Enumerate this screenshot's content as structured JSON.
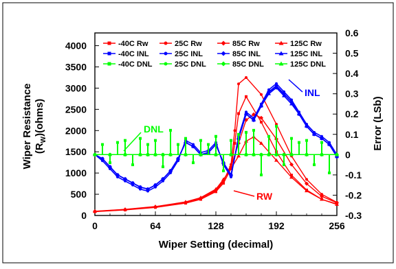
{
  "chart_data": {
    "type": "line",
    "title": "",
    "xlabel": "Wiper Setting (decimal)",
    "ylabel_left": "Wiper Resistance (R_W)(ohms)",
    "ylabel_right": "Error (LSb)",
    "xlim": [
      0,
      256
    ],
    "ylim_left": [
      0,
      4300
    ],
    "ylim_right": [
      -0.3,
      0.6
    ],
    "x_ticks": [
      "0",
      "64",
      "128",
      "192",
      "256"
    ],
    "y_left_ticks": [
      "0",
      "500",
      "1000",
      "1500",
      "2000",
      "2500",
      "3000",
      "3500",
      "4000"
    ],
    "y_right_ticks": [
      "-0.3",
      "-0.2",
      "-0.1",
      "0",
      "0.1",
      "0.2",
      "0.3",
      "0.4",
      "0.5",
      "0.6"
    ],
    "grid": false,
    "legend_position": "top",
    "legend": [
      [
        "-40C Rw",
        "25C Rw",
        "85C Rw",
        "125C Rw"
      ],
      [
        "-40C INL",
        "25C INL",
        "85C INL",
        "125C INL"
      ],
      [
        "-40C DNL",
        "25C DNL",
        "85C DNL",
        "125C DNL"
      ]
    ],
    "annotations": {
      "inl": "INL",
      "dnl": "DNL",
      "rw": "RW"
    },
    "colors": {
      "rw": "#ff0000",
      "inl": "#0000ff",
      "dnl": "#00ff00"
    },
    "series": [
      {
        "name": "-40C Rw",
        "group": "rw",
        "axis": "left",
        "x": [
          0,
          32,
          64,
          96,
          112,
          128,
          136,
          144,
          148,
          152,
          160,
          176,
          192,
          208,
          224,
          240,
          256
        ],
        "values": [
          90,
          130,
          190,
          290,
          380,
          560,
          760,
          1100,
          1700,
          2400,
          2800,
          2200,
          1500,
          950,
          600,
          380,
          270
        ]
      },
      {
        "name": "25C Rw",
        "group": "rw",
        "axis": "left",
        "x": [
          0,
          32,
          64,
          96,
          112,
          128,
          136,
          144,
          148,
          152,
          160,
          176,
          192,
          208,
          224,
          240,
          256
        ],
        "values": [
          95,
          135,
          200,
          300,
          400,
          580,
          800,
          1200,
          2000,
          3100,
          3250,
          2850,
          2150,
          1400,
          850,
          500,
          310
        ]
      },
      {
        "name": "85C Rw",
        "group": "rw",
        "axis": "left",
        "x": [
          0,
          32,
          64,
          96,
          112,
          128,
          136,
          144,
          152,
          160,
          168,
          176,
          192,
          208,
          224,
          240,
          256
        ],
        "values": [
          95,
          140,
          205,
          310,
          410,
          600,
          820,
          1150,
          1700,
          2250,
          2380,
          2300,
          1800,
          1200,
          750,
          450,
          300
        ]
      },
      {
        "name": "125C Rw",
        "group": "rw",
        "axis": "left",
        "x": [
          0,
          32,
          64,
          96,
          112,
          128,
          136,
          144,
          152,
          160,
          168,
          176,
          192,
          208,
          224,
          240,
          256
        ],
        "values": [
          100,
          145,
          210,
          320,
          420,
          620,
          850,
          1100,
          1400,
          1750,
          1850,
          1700,
          1300,
          900,
          580,
          380,
          260
        ]
      },
      {
        "name": "-40C INL",
        "group": "inl",
        "axis": "right",
        "x": [
          0,
          8,
          16,
          24,
          32,
          40,
          48,
          56,
          64,
          72,
          80,
          88,
          96,
          104,
          112,
          120,
          128,
          136,
          144,
          152,
          160,
          168,
          176,
          184,
          192,
          200,
          208,
          216,
          224,
          232,
          240,
          248,
          256
        ],
        "values": [
          0,
          -0.02,
          -0.06,
          -0.1,
          -0.12,
          -0.14,
          -0.16,
          -0.17,
          -0.15,
          -0.12,
          -0.08,
          -0.02,
          0.06,
          0.04,
          0,
          0.01,
          0.05,
          -0.04,
          -0.1,
          0.08,
          0.2,
          0.17,
          0.24,
          0.31,
          0.34,
          0.3,
          0.26,
          0.2,
          0.14,
          0.1,
          0.08,
          0.05,
          -0.01
        ]
      },
      {
        "name": "25C INL",
        "group": "inl",
        "axis": "right",
        "x": [
          0,
          8,
          16,
          24,
          32,
          40,
          48,
          56,
          64,
          72,
          80,
          88,
          96,
          104,
          112,
          120,
          128,
          136,
          144,
          152,
          160,
          168,
          176,
          184,
          192,
          200,
          208,
          216,
          224,
          232,
          240,
          248,
          256
        ],
        "values": [
          0,
          -0.03,
          -0.07,
          -0.11,
          -0.13,
          -0.15,
          -0.17,
          -0.18,
          -0.16,
          -0.13,
          -0.09,
          -0.03,
          0.07,
          0.05,
          0.01,
          0.02,
          0.06,
          -0.05,
          -0.11,
          0.09,
          0.21,
          0.18,
          0.25,
          0.32,
          0.35,
          0.31,
          0.27,
          0.21,
          0.15,
          0.11,
          0.09,
          0.06,
          0
        ]
      },
      {
        "name": "85C INL",
        "group": "inl",
        "axis": "right",
        "x": [
          0,
          8,
          16,
          24,
          32,
          40,
          48,
          56,
          64,
          72,
          80,
          88,
          96,
          104,
          112,
          120,
          128,
          136,
          144,
          152,
          160,
          168,
          176,
          184,
          192,
          200,
          208,
          216,
          224,
          232,
          240,
          248,
          256
        ],
        "values": [
          0,
          -0.02,
          -0.06,
          -0.1,
          -0.12,
          -0.14,
          -0.16,
          -0.17,
          -0.15,
          -0.12,
          -0.08,
          -0.02,
          0.06,
          0.04,
          0,
          0.01,
          0.05,
          -0.04,
          -0.1,
          0.08,
          0.2,
          0.17,
          0.24,
          0.31,
          0.33,
          0.3,
          0.26,
          0.2,
          0.14,
          0.1,
          0.08,
          0.05,
          -0.01
        ]
      },
      {
        "name": "125C INL",
        "group": "inl",
        "axis": "right",
        "x": [
          0,
          8,
          16,
          24,
          32,
          40,
          48,
          56,
          64,
          72,
          80,
          88,
          96,
          104,
          112,
          120,
          128,
          136,
          144,
          152,
          160,
          168,
          176,
          184,
          192,
          200,
          208,
          216,
          224,
          232,
          240,
          248,
          256
        ],
        "values": [
          0,
          -0.02,
          -0.06,
          -0.1,
          -0.12,
          -0.14,
          -0.16,
          -0.17,
          -0.15,
          -0.12,
          -0.08,
          -0.02,
          0.06,
          0.04,
          0,
          0.01,
          0.05,
          -0.04,
          -0.1,
          0.08,
          0.2,
          0.17,
          0.24,
          0.3,
          0.33,
          0.29,
          0.25,
          0.2,
          0.14,
          0.1,
          0.08,
          0.05,
          -0.01
        ]
      },
      {
        "name": "-40C DNL",
        "group": "dnl",
        "axis": "right",
        "x": [
          0,
          16,
          32,
          48,
          56,
          64,
          72,
          80,
          96,
          112,
          128,
          144,
          160,
          168,
          176,
          184,
          192,
          200,
          208,
          224,
          240,
          256
        ],
        "values": [
          0,
          0,
          0,
          0,
          0,
          0,
          0,
          0,
          0,
          0,
          0,
          0,
          0,
          0,
          0,
          0,
          0,
          0,
          0,
          0,
          0,
          0
        ]
      },
      {
        "name": "25C DNL",
        "group": "dnl",
        "axis": "right",
        "x": [
          0,
          16,
          32,
          48,
          56,
          64,
          72,
          80,
          96,
          112,
          128,
          144,
          160,
          168,
          176,
          184,
          192,
          200,
          208,
          224,
          240,
          256
        ],
        "values": [
          0,
          0,
          0,
          0,
          0,
          0,
          0,
          0,
          0,
          0,
          0,
          0,
          0,
          0,
          0,
          0,
          0,
          0,
          0,
          0,
          0,
          0
        ]
      },
      {
        "name": "85C DNL",
        "group": "dnl",
        "axis": "right",
        "x": [
          0,
          16,
          32,
          48,
          56,
          64,
          72,
          80,
          96,
          112,
          128,
          144,
          160,
          168,
          176,
          184,
          192,
          200,
          208,
          224,
          240,
          256
        ],
        "values": [
          0,
          0,
          0,
          0,
          0,
          0,
          0,
          0,
          0,
          0,
          0,
          0,
          0,
          0,
          0,
          0,
          0,
          0,
          0,
          0,
          0,
          0
        ]
      },
      {
        "name": "125C DNL",
        "group": "dnl",
        "axis": "right",
        "x": [
          0,
          16,
          32,
          48,
          56,
          64,
          72,
          80,
          96,
          112,
          128,
          144,
          160,
          168,
          176,
          184,
          192,
          200,
          208,
          224,
          240,
          256
        ],
        "values": [
          0,
          0,
          0,
          0,
          0,
          0,
          0,
          0,
          0,
          0,
          0,
          0,
          0,
          0,
          0,
          0,
          0,
          0,
          0,
          0,
          0,
          0
        ]
      }
    ],
    "dnl_spikes": {
      "x": [
        8,
        16,
        24,
        32,
        40,
        48,
        56,
        64,
        72,
        80,
        88,
        96,
        104,
        112,
        120,
        128,
        136,
        144,
        152,
        160,
        168,
        176,
        184,
        192,
        200,
        208,
        216,
        224,
        232,
        240,
        248
      ],
      "values": [
        0.05,
        -0.04,
        0.06,
        0.07,
        -0.05,
        0.08,
        0.05,
        0.07,
        -0.06,
        0.12,
        0.05,
        0.08,
        -0.04,
        0.07,
        0.05,
        0.09,
        -0.08,
        0.07,
        0.1,
        0.11,
        0.12,
        -0.1,
        0.09,
        0.14,
        -0.05,
        0.08,
        0.06,
        0.07,
        -0.05,
        0.06,
        -0.09
      ]
    }
  }
}
